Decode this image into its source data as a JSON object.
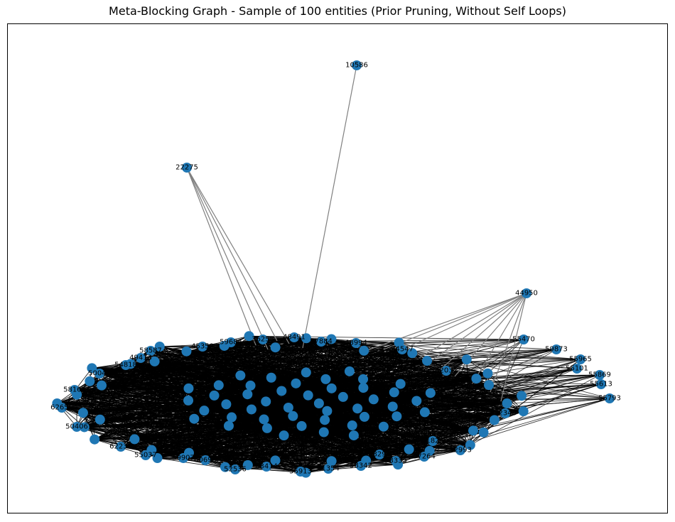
{
  "title": "Meta-Blocking Graph - Sample of 100 entities (Prior Pruning, Without Self Loops)",
  "colors": {
    "node": "#1f77b4",
    "edge_dense": "#000000",
    "edge_sparse": "#808080"
  },
  "labeled_nodes": [
    {
      "id": "10586"
    },
    {
      "id": "22275"
    },
    {
      "id": "44950"
    },
    {
      "id": "55470"
    },
    {
      "id": "59873"
    },
    {
      "id": "55965"
    },
    {
      "id": "55101"
    },
    {
      "id": "55869"
    },
    {
      "id": "55613"
    },
    {
      "id": "55793"
    },
    {
      "id": "59684"
    },
    {
      "id": "36258"
    },
    {
      "id": "48491"
    },
    {
      "id": "57884"
    },
    {
      "id": "48994"
    },
    {
      "id": "45350"
    },
    {
      "id": "58587"
    },
    {
      "id": "49413"
    },
    {
      "id": "50047"
    },
    {
      "id": "54818"
    },
    {
      "id": "58165"
    },
    {
      "id": "62655"
    },
    {
      "id": "50406"
    },
    {
      "id": "62237"
    },
    {
      "id": "55037"
    },
    {
      "id": "59907"
    },
    {
      "id": "60695"
    },
    {
      "id": "52536"
    },
    {
      "id": "63414"
    },
    {
      "id": "55913"
    },
    {
      "id": "61354"
    },
    {
      "id": "58342"
    },
    {
      "id": "53335"
    },
    {
      "id": "57264"
    },
    {
      "id": "52993"
    },
    {
      "id": "52348"
    },
    {
      "id": "54547"
    },
    {
      "id": "52031"
    },
    {
      "id": "61826"
    },
    {
      "id": "48295"
    }
  ]
}
